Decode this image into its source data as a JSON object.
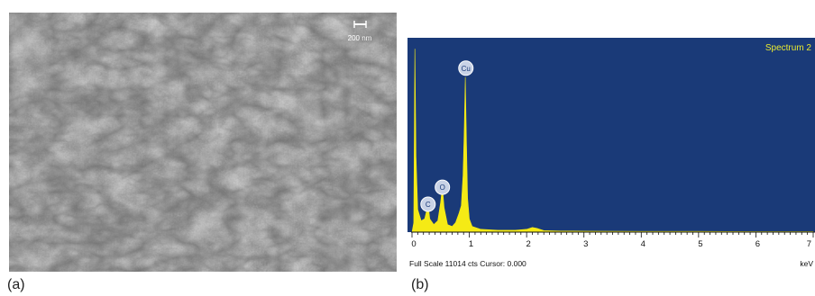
{
  "panel_a": {
    "label": "(a)",
    "scale_bar": "200 nm"
  },
  "panel_b": {
    "label": "(b)",
    "spectrum_name": "Spectrum 2",
    "status": "Full Scale 11014 cts Cursor: 0.000",
    "x_unit": "keV",
    "colors": {
      "background": "#1a3a78",
      "spectrum": "#f5ea15",
      "title": "#e9e930"
    },
    "chart_data": {
      "type": "area",
      "xlim": [
        0,
        7
      ],
      "x_ticks": [
        0,
        1,
        2,
        3,
        4,
        5,
        6,
        7
      ],
      "peaks": [
        {
          "label": "C",
          "x": 0.28,
          "y": 0.1
        },
        {
          "label": "O",
          "x": 0.53,
          "y": 0.19
        },
        {
          "label": "Cu",
          "x": 0.94,
          "y": 0.82
        }
      ],
      "spectrum": [
        [
          0.0,
          0.0
        ],
        [
          0.03,
          0.05
        ],
        [
          0.05,
          0.97
        ],
        [
          0.07,
          0.4
        ],
        [
          0.1,
          0.12
        ],
        [
          0.16,
          0.06
        ],
        [
          0.22,
          0.07
        ],
        [
          0.26,
          0.12
        ],
        [
          0.28,
          0.15
        ],
        [
          0.31,
          0.07
        ],
        [
          0.38,
          0.04
        ],
        [
          0.45,
          0.06
        ],
        [
          0.5,
          0.16
        ],
        [
          0.53,
          0.24
        ],
        [
          0.56,
          0.13
        ],
        [
          0.62,
          0.04
        ],
        [
          0.7,
          0.03
        ],
        [
          0.76,
          0.05
        ],
        [
          0.82,
          0.1
        ],
        [
          0.86,
          0.14
        ],
        [
          0.89,
          0.3
        ],
        [
          0.91,
          0.52
        ],
        [
          0.93,
          0.82
        ],
        [
          0.95,
          0.48
        ],
        [
          0.97,
          0.18
        ],
        [
          1.0,
          0.07
        ],
        [
          1.05,
          0.03
        ],
        [
          1.2,
          0.015
        ],
        [
          1.5,
          0.01
        ],
        [
          1.8,
          0.01
        ],
        [
          2.0,
          0.015
        ],
        [
          2.1,
          0.025
        ],
        [
          2.18,
          0.02
        ],
        [
          2.3,
          0.008
        ],
        [
          2.6,
          0.006
        ],
        [
          3.0,
          0.005
        ],
        [
          4.0,
          0.004
        ],
        [
          5.0,
          0.004
        ],
        [
          6.0,
          0.003
        ],
        [
          7.0,
          0.003
        ]
      ]
    }
  }
}
